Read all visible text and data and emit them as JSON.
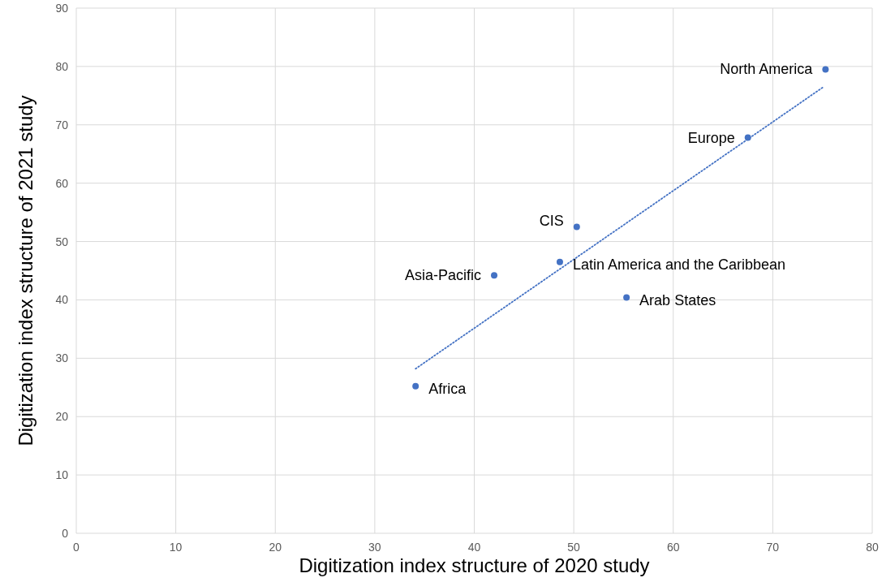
{
  "chart_data": {
    "type": "scatter",
    "xlabel": "Digitization index structure of 2020 study",
    "ylabel": "Digitization index structure of 2021 study",
    "xlim": [
      0,
      80
    ],
    "ylim": [
      0,
      90
    ],
    "xticks": [
      0,
      10,
      20,
      30,
      40,
      50,
      60,
      70,
      80
    ],
    "yticks": [
      0,
      10,
      20,
      30,
      40,
      50,
      60,
      70,
      80,
      90
    ],
    "grid": true,
    "series": [
      {
        "color": "#4472c4",
        "marker": "circle",
        "x": [
          75.3,
          67.5,
          50.3,
          48.6,
          42.0,
          55.3,
          34.1
        ],
        "values": [
          79.5,
          67.8,
          52.5,
          46.5,
          44.2,
          40.4,
          25.2
        ]
      },
      {
        "type": "line",
        "color": "#4472c4",
        "marker": "none",
        "line_style": "dotted",
        "x": [
          34.1,
          75.1
        ],
        "values": [
          28.2,
          76.5
        ]
      }
    ],
    "annotations": [
      {
        "text": "North America",
        "x": 75.3,
        "y": 79.5
      },
      {
        "text": "Europe",
        "x": 67.5,
        "y": 67.8
      },
      {
        "text": "CIS",
        "x": 50.3,
        "y": 52.5
      },
      {
        "text": "Latin America and the Caribbean",
        "x": 48.6,
        "y": 46.5
      },
      {
        "text": "Asia-Pacific",
        "x": 42.0,
        "y": 44.2
      },
      {
        "text": "Arab States",
        "x": 55.3,
        "y": 40.4
      },
      {
        "text": "Africa",
        "x": 34.1,
        "y": 25.2
      }
    ]
  }
}
